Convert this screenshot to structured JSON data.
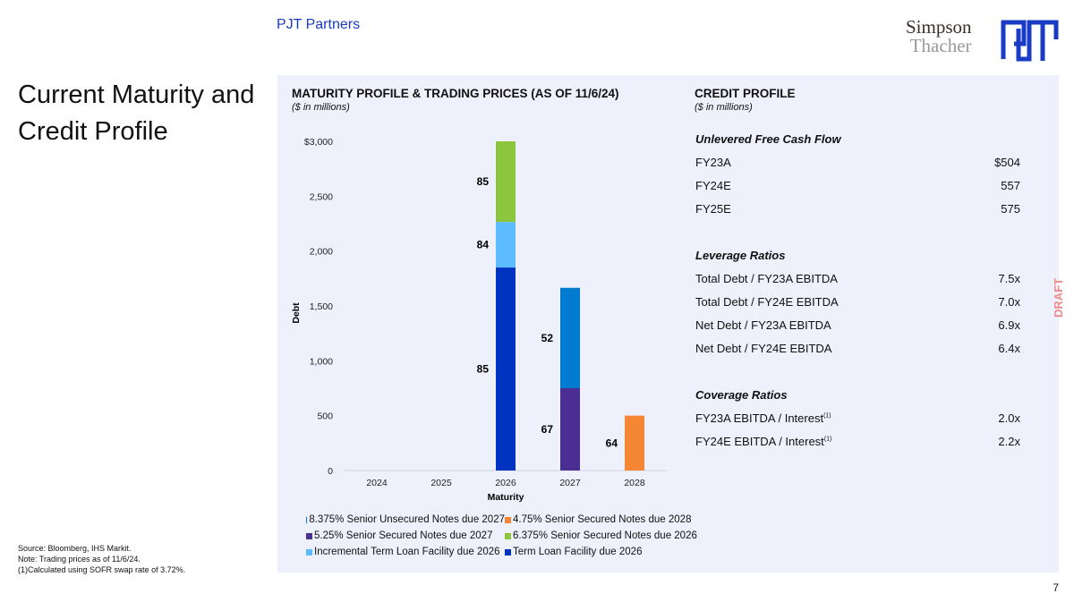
{
  "header": {
    "brand": "PJT Partners",
    "logo_left_line1": "Simpson",
    "logo_left_line2": "Thacher",
    "logo_right": "PJT"
  },
  "title": "Current Maturity and Credit Profile",
  "maturity": {
    "heading": "MATURITY PROFILE & TRADING PRICES (AS OF 11/6/24)",
    "subheading": "($ in millions)"
  },
  "chart_data": {
    "type": "bar",
    "stacked": true,
    "categories": [
      "2024",
      "2025",
      "2026",
      "2027",
      "2028"
    ],
    "xlabel": "Maturity",
    "ylabel": "Debt",
    "ylim": [
      0,
      3000
    ],
    "yticks": [
      "$3,000",
      "2,500",
      "2,000",
      "1,500",
      "1,000",
      "500",
      "0"
    ],
    "ytick_values": [
      3000,
      2500,
      2000,
      1500,
      1000,
      500,
      0
    ],
    "grid": false,
    "legend": "bottom",
    "series": [
      {
        "name": "Term Loan Facility due 2026",
        "color": "#0033c0",
        "values": [
          0,
          0,
          1850,
          0,
          0
        ],
        "price_labels": [
          null,
          null,
          "85",
          null,
          null
        ]
      },
      {
        "name": "Incremental Term Loan Facility due 2026",
        "color": "#5cbcff",
        "values": [
          0,
          0,
          415,
          0,
          0
        ],
        "price_labels": [
          null,
          null,
          "84",
          null,
          null
        ]
      },
      {
        "name": "6.375% Senior Secured Notes due 2026",
        "color": "#8cc63f",
        "values": [
          0,
          0,
          735,
          0,
          0
        ],
        "price_labels": [
          null,
          null,
          "85",
          null,
          null
        ]
      },
      {
        "name": "5.25% Senior Secured Notes due 2027",
        "color": "#4b2e91",
        "values": [
          0,
          0,
          0,
          750,
          0
        ],
        "price_labels": [
          null,
          null,
          null,
          "67",
          null
        ]
      },
      {
        "name": "8.375% Senior Unsecured Notes due 2027",
        "color": "#007bd0",
        "values": [
          0,
          0,
          0,
          915,
          0
        ],
        "price_labels": [
          null,
          null,
          null,
          "52",
          null
        ]
      },
      {
        "name": "4.75% Senior Secured Notes due 2028",
        "color": "#f58634",
        "values": [
          0,
          0,
          0,
          0,
          500
        ],
        "price_labels": [
          null,
          null,
          null,
          null,
          "64"
        ]
      }
    ],
    "legend_order": [
      4,
      5,
      3,
      2,
      1,
      0
    ]
  },
  "credit": {
    "heading": "CREDIT PROFILE",
    "subheading": "($ in millions)",
    "sections": [
      {
        "title": "Unlevered Free Cash Flow",
        "rows": [
          [
            "FY23A",
            "$504"
          ],
          [
            "FY24E",
            "557"
          ],
          [
            "FY25E",
            "575"
          ]
        ]
      },
      {
        "title": "Leverage Ratios",
        "rows": [
          [
            "Total Debt / FY23A EBITDA",
            "7.5x"
          ],
          [
            "Total Debt / FY24E EBITDA",
            "7.0x"
          ],
          [
            "Net Debt / FY23A EBITDA",
            "6.9x"
          ],
          [
            "Net Debt / FY24E EBITDA",
            "6.4x"
          ]
        ]
      },
      {
        "title": "Coverage Ratios",
        "rows": [
          [
            "FY23A EBITDA / Interest",
            "2.0x",
            "(1)"
          ],
          [
            "FY24E EBITDA / Interest",
            "2.2x",
            "(1)"
          ]
        ]
      }
    ]
  },
  "watermark": "DRAFT",
  "notes": [
    "Source: Bloomberg, IHS Markit.",
    "Note: Trading prices as of 11/6/24.",
    "(1)Calculated using SOFR swap rate of 3.72%."
  ],
  "page_number": "7"
}
